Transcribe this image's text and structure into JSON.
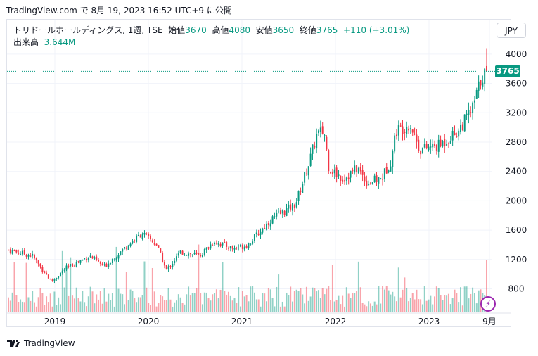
{
  "caption": "TradingView.com で 8月 19, 2023 16:52 UTC+9 に公開",
  "legend": {
    "symbol": "トリドールホールディングス, 1週, TSE",
    "open_label": "始値",
    "open": "3670",
    "high_label": "高値",
    "high": "4080",
    "low_label": "安値",
    "low": "3650",
    "close_label": "終値",
    "close": "3765",
    "change": "+110 (+3.01%)",
    "volume_label": "出来高",
    "volume": "3.644M"
  },
  "currency_button": "JPY",
  "last_price_tag": "3765",
  "brand": "TradingView",
  "colors": {
    "up": "#089981",
    "down": "#f23645",
    "grid": "#f0f3fa",
    "text": "#131722"
  },
  "chart_data": {
    "type": "candlestick",
    "interval": "weekly",
    "y_axis_ticks": [
      800,
      1200,
      1600,
      2000,
      2400,
      2800,
      3200,
      3600,
      4000
    ],
    "x_axis_ticks": [
      "2019",
      "2020",
      "2021",
      "2022",
      "2023",
      "9月"
    ],
    "ylim": [
      500,
      4200
    ],
    "grid": true,
    "last_close": 3765,
    "anchors": [
      {
        "t": 0.0,
        "p": 1330
      },
      {
        "t": 0.05,
        "p": 1250
      },
      {
        "t": 0.09,
        "p": 900
      },
      {
        "t": 0.12,
        "p": 1080
      },
      {
        "t": 0.17,
        "p": 1250
      },
      {
        "t": 0.2,
        "p": 1100
      },
      {
        "t": 0.25,
        "p": 1400
      },
      {
        "t": 0.28,
        "p": 1560
      },
      {
        "t": 0.31,
        "p": 1400
      },
      {
        "t": 0.33,
        "p": 1050
      },
      {
        "t": 0.36,
        "p": 1300
      },
      {
        "t": 0.4,
        "p": 1250
      },
      {
        "t": 0.43,
        "p": 1450
      },
      {
        "t": 0.47,
        "p": 1350
      },
      {
        "t": 0.5,
        "p": 1400
      },
      {
        "t": 0.55,
        "p": 1750
      },
      {
        "t": 0.6,
        "p": 1950
      },
      {
        "t": 0.63,
        "p": 2550
      },
      {
        "t": 0.645,
        "p": 2900
      },
      {
        "t": 0.66,
        "p": 2950
      },
      {
        "t": 0.67,
        "p": 2450
      },
      {
        "t": 0.7,
        "p": 2300
      },
      {
        "t": 0.73,
        "p": 2450
      },
      {
        "t": 0.75,
        "p": 2250
      },
      {
        "t": 0.78,
        "p": 2300
      },
      {
        "t": 0.8,
        "p": 2550
      },
      {
        "t": 0.81,
        "p": 2950
      },
      {
        "t": 0.84,
        "p": 3050
      },
      {
        "t": 0.86,
        "p": 2700
      },
      {
        "t": 0.9,
        "p": 2750
      },
      {
        "t": 0.94,
        "p": 2950
      },
      {
        "t": 0.97,
        "p": 3250
      },
      {
        "t": 0.99,
        "p": 3700
      },
      {
        "t": 1.0,
        "p": 3765
      }
    ],
    "volume_max_label": "",
    "volume_shape": "bars along the bottom of the price pane"
  }
}
